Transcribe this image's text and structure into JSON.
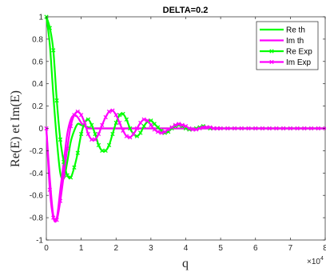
{
  "chart_data": {
    "type": "line",
    "title": "DELTA=0.2",
    "xlabel": "q",
    "ylabel": "Re(E) et Im(E)",
    "x_exponent_label": "×10",
    "x_exponent_power": "4",
    "xlim": [
      0,
      80000
    ],
    "ylim": [
      -1,
      1
    ],
    "x_ticks": [
      0,
      10000,
      20000,
      30000,
      40000,
      50000,
      60000,
      70000,
      80000
    ],
    "x_tick_labels": [
      "0",
      "1",
      "2",
      "3",
      "4",
      "5",
      "6",
      "7",
      "8"
    ],
    "y_ticks": [
      -1,
      -0.8,
      -0.6,
      -0.4,
      -0.2,
      0,
      0.2,
      0.4,
      0.6,
      0.8,
      1
    ],
    "y_tick_labels": [
      "-1",
      "-0.8",
      "-0.6",
      "-0.4",
      "-0.2",
      "0",
      "0.2",
      "0.4",
      "0.6",
      "0.8",
      "1"
    ],
    "grid": false,
    "legend_position": "top-right",
    "series": [
      {
        "name": "Re th",
        "color": "#00ff00",
        "marker": "none",
        "x": [
          0,
          1000,
          2000,
          3000,
          4000,
          5000,
          6000,
          7000,
          8000,
          9000,
          10000,
          11000,
          12000,
          13000,
          14000,
          15000,
          16000,
          18000,
          20000,
          24000,
          30000,
          40000,
          50000,
          60000,
          70000,
          80000
        ],
        "y": [
          1.0,
          0.75,
          0.3,
          -0.1,
          -0.4,
          -0.45,
          -0.3,
          -0.12,
          -0.02,
          0.04,
          0.03,
          0.02,
          0.01,
          0.0,
          0.0,
          0.0,
          0.0,
          0.0,
          0.0,
          0.0,
          0.0,
          0.0,
          0.0,
          0.0,
          0.0,
          0.0
        ]
      },
      {
        "name": "Im th",
        "color": "#ff00ff",
        "marker": "none",
        "x": [
          0,
          1000,
          2000,
          3000,
          4000,
          5000,
          6000,
          7000,
          8000,
          9000,
          10000,
          11000,
          12000,
          13000,
          14000,
          15000,
          16000,
          18000,
          20000,
          24000,
          30000,
          40000,
          50000,
          60000,
          70000,
          80000
        ],
        "y": [
          0.0,
          -0.45,
          -0.78,
          -0.8,
          -0.55,
          -0.3,
          -0.05,
          0.08,
          0.12,
          0.1,
          0.05,
          0.02,
          0.0,
          0.0,
          0.0,
          0.0,
          0.0,
          0.0,
          0.0,
          0.0,
          0.0,
          0.0,
          0.0,
          0.0,
          0.0,
          0.0
        ]
      },
      {
        "name": "Re Exp",
        "color": "#00ff00",
        "marker": "x",
        "x": [
          0,
          1000,
          2000,
          3000,
          4000,
          5000,
          6000,
          7000,
          8000,
          9000,
          10000,
          11000,
          12000,
          13000,
          14000,
          15000,
          16000,
          17000,
          18000,
          19000,
          20000,
          21000,
          22000,
          23000,
          24000,
          25000,
          26000,
          27000,
          28000,
          29000,
          30000,
          31000,
          32000,
          33000,
          34000,
          35000,
          36000,
          37000,
          38000,
          39000,
          40000,
          41000,
          42000,
          43000,
          44000,
          45000,
          46000,
          47000,
          48000,
          49000,
          50000,
          52000,
          54000,
          56000,
          58000,
          60000,
          62000,
          64000,
          66000,
          68000,
          70000,
          72000,
          74000,
          76000,
          78000,
          80000
        ],
        "y": [
          1.0,
          0.9,
          0.7,
          0.25,
          -0.1,
          -0.3,
          -0.42,
          -0.44,
          -0.35,
          -0.22,
          -0.05,
          0.05,
          0.08,
          0.03,
          -0.05,
          -0.15,
          -0.2,
          -0.2,
          -0.15,
          -0.05,
          0.05,
          0.12,
          0.13,
          0.08,
          0.0,
          -0.05,
          -0.07,
          -0.04,
          0.02,
          0.06,
          0.07,
          0.04,
          0.01,
          -0.02,
          -0.04,
          -0.03,
          0.0,
          0.02,
          0.03,
          0.02,
          0.0,
          -0.01,
          -0.01,
          0.0,
          0.01,
          0.02,
          0.01,
          0.0,
          0.0,
          0.0,
          0.0,
          0.0,
          0.0,
          0.0,
          0.0,
          0.0,
          0.0,
          0.0,
          0.0,
          0.0,
          0.0,
          0.0,
          0.0,
          0.0,
          0.0,
          0.0
        ]
      },
      {
        "name": "Im Exp",
        "color": "#ff00ff",
        "marker": "x",
        "x": [
          0,
          1000,
          2000,
          3000,
          4000,
          5000,
          6000,
          7000,
          8000,
          9000,
          10000,
          11000,
          12000,
          13000,
          14000,
          15000,
          16000,
          17000,
          18000,
          19000,
          20000,
          21000,
          22000,
          23000,
          24000,
          25000,
          26000,
          27000,
          28000,
          29000,
          30000,
          31000,
          32000,
          33000,
          34000,
          35000,
          36000,
          37000,
          38000,
          39000,
          40000,
          41000,
          42000,
          43000,
          44000,
          45000,
          46000,
          47000,
          48000,
          49000,
          50000,
          52000,
          54000,
          56000,
          58000,
          60000,
          62000,
          64000,
          66000,
          68000,
          70000,
          72000,
          74000,
          76000,
          78000,
          80000
        ],
        "y": [
          0.0,
          -0.55,
          -0.8,
          -0.82,
          -0.65,
          -0.42,
          -0.18,
          0.02,
          0.12,
          0.15,
          0.12,
          0.05,
          -0.05,
          -0.1,
          -0.1,
          -0.05,
          0.03,
          0.1,
          0.15,
          0.16,
          0.12,
          0.05,
          -0.02,
          -0.07,
          -0.08,
          -0.05,
          0.0,
          0.05,
          0.08,
          0.07,
          0.03,
          -0.01,
          -0.03,
          -0.04,
          -0.03,
          -0.01,
          0.01,
          0.03,
          0.04,
          0.03,
          0.02,
          0.0,
          -0.01,
          -0.01,
          0.0,
          0.01,
          0.01,
          0.01,
          0.0,
          0.0,
          0.0,
          0.0,
          0.0,
          0.0,
          0.0,
          0.0,
          0.0,
          0.0,
          0.0,
          0.0,
          0.0,
          0.0,
          0.0,
          0.0,
          0.0,
          0.0
        ]
      }
    ]
  }
}
